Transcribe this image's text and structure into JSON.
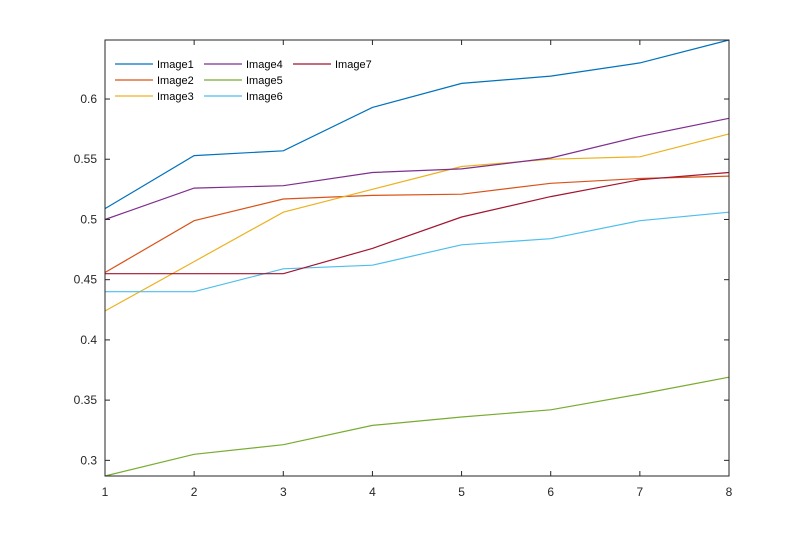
{
  "chart_data": {
    "type": "line",
    "title": "",
    "xlabel": "",
    "ylabel": "",
    "x": [
      1,
      2,
      3,
      4,
      5,
      6,
      7,
      8
    ],
    "xlim": [
      1,
      8
    ],
    "ylim": [
      0.287,
      0.649
    ],
    "xticks": [
      1,
      2,
      3,
      4,
      5,
      6,
      7,
      8
    ],
    "yticks": [
      "0.3",
      "0.35",
      "0.4",
      "0.45",
      "0.5",
      "0.55",
      "0.6"
    ],
    "grid": false,
    "legend_placement": "top-left",
    "series": [
      {
        "name": "Image1",
        "color": "#0072BD",
        "values": [
          0.509,
          0.553,
          0.557,
          0.593,
          0.613,
          0.619,
          0.63,
          0.65
        ]
      },
      {
        "name": "Image2",
        "color": "#D95319",
        "values": [
          0.456,
          0.499,
          0.517,
          0.52,
          0.521,
          0.53,
          0.534,
          0.536
        ]
      },
      {
        "name": "Image3",
        "color": "#EDB120",
        "values": [
          0.424,
          0.465,
          0.506,
          0.525,
          0.544,
          0.55,
          0.552,
          0.571
        ]
      },
      {
        "name": "Image4",
        "color": "#7E2F8E",
        "values": [
          0.5,
          0.526,
          0.528,
          0.539,
          0.542,
          0.551,
          0.569,
          0.584
        ]
      },
      {
        "name": "Image5",
        "color": "#77AC30",
        "values": [
          0.287,
          0.305,
          0.313,
          0.329,
          0.336,
          0.342,
          0.355,
          0.369
        ]
      },
      {
        "name": "Image6",
        "color": "#4DBEEE",
        "values": [
          0.44,
          0.44,
          0.459,
          0.462,
          0.479,
          0.484,
          0.499,
          0.506
        ]
      },
      {
        "name": "Image7",
        "color": "#A2142F",
        "values": [
          0.455,
          0.455,
          0.455,
          0.476,
          0.502,
          0.519,
          0.533,
          0.539
        ]
      }
    ]
  }
}
